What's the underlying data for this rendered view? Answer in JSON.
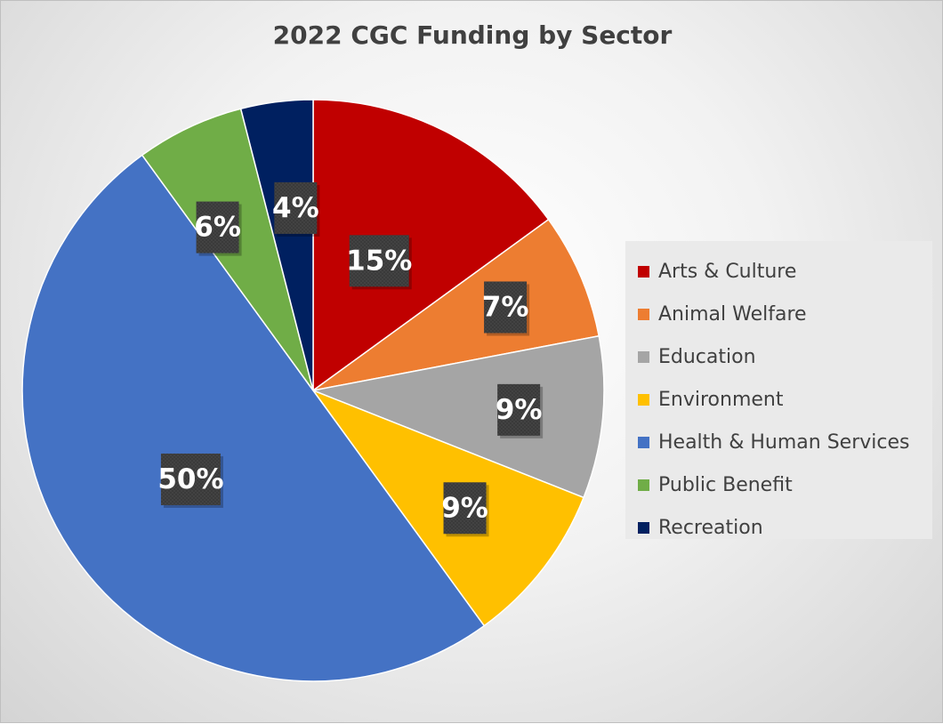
{
  "chart_data": {
    "type": "pie",
    "title": "2022 CGC Funding by Sector",
    "legend_position": "right",
    "slices": [
      {
        "name": "Arts & Culture",
        "value": 15,
        "label": "15%",
        "color": "#C00000"
      },
      {
        "name": "Animal Welfare",
        "value": 7,
        "label": "7%",
        "color": "#ED7D31"
      },
      {
        "name": "Education",
        "value": 9,
        "label": "9%",
        "color": "#A5A5A5"
      },
      {
        "name": "Environment",
        "value": 9,
        "label": "9%",
        "color": "#FFC000"
      },
      {
        "name": "Health & Human Services",
        "value": 50,
        "label": "50%",
        "color": "#4472C4"
      },
      {
        "name": "Public Benefit",
        "value": 6,
        "label": "6%",
        "color": "#70AD47"
      },
      {
        "name": "Recreation",
        "value": 4,
        "label": "4%",
        "color": "#002060"
      }
    ]
  }
}
